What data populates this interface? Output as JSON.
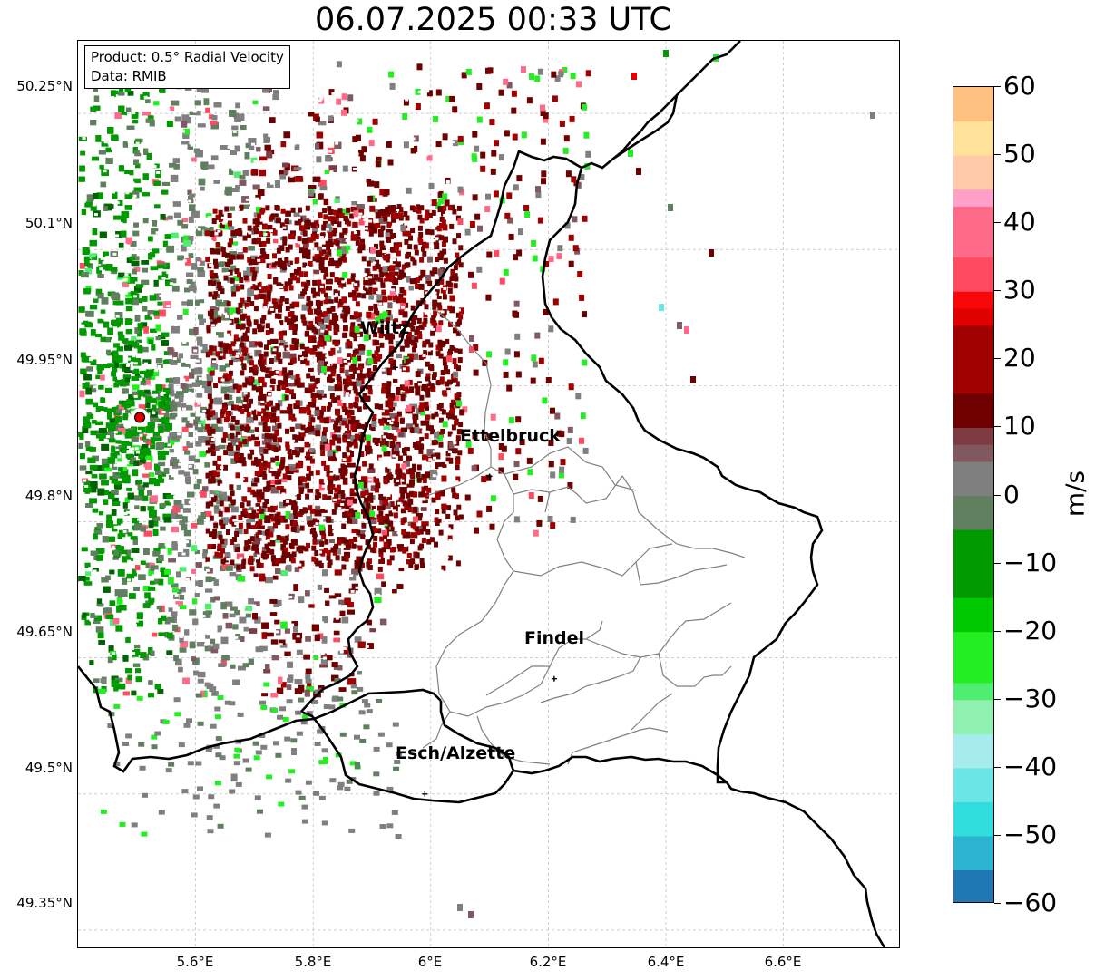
{
  "title": "06.07.2025 00:33 UTC",
  "info": {
    "product": "Product: 0.5° Radial Velocity",
    "data": "Data: RMIB"
  },
  "lat_labels": [
    "50.25°N",
    "50.1°N",
    "49.95°N",
    "49.8°N",
    "49.65°N",
    "49.5°N",
    "49.35°N"
  ],
  "lon_labels": [
    "5.6°E",
    "5.8°E",
    "6°E",
    "6.2°E",
    "6.4°E",
    "6.6°E"
  ],
  "cities": [
    {
      "name": "Wiltz",
      "lon": 5.94,
      "lat": 49.97
    },
    {
      "name": "Ettelbruck",
      "lon": 6.1,
      "lat": 49.85
    },
    {
      "name": "Findel",
      "lon": 6.21,
      "lat": 49.627
    },
    {
      "name": "Esch/Alzette",
      "lon": 5.99,
      "lat": 49.5
    }
  ],
  "radar_site": {
    "lon": 5.505,
    "lat": 49.915
  },
  "colorbar": {
    "label": "m/s",
    "ticks": [
      "60",
      "50",
      "40",
      "30",
      "20",
      "10",
      "0",
      "−10",
      "−20",
      "−30",
      "−40",
      "−50",
      "−60"
    ],
    "min": -60,
    "max": 60,
    "stops": [
      {
        "v": -60,
        "color": "#1f78b4"
      },
      {
        "v": -55,
        "color": "#2bb5d0"
      },
      {
        "v": -50,
        "color": "#30dede"
      },
      {
        "v": -45,
        "color": "#6ae6e6"
      },
      {
        "v": -40,
        "color": "#a6ecec"
      },
      {
        "v": -36,
        "color": "#b8f0f0"
      },
      {
        "v": -35,
        "color": "#90f0b0"
      },
      {
        "v": -31,
        "color": "#50ee70"
      },
      {
        "v": -28,
        "color": "#22ee22"
      },
      {
        "v": -20,
        "color": "#00c800"
      },
      {
        "v": -14,
        "color": "#009a00"
      },
      {
        "v": -6,
        "color": "#006400"
      },
      {
        "v": -5,
        "color": "#5f7f5f"
      },
      {
        "v": 0,
        "color": "#7f7f7f"
      },
      {
        "v": 5,
        "color": "#7f5860"
      },
      {
        "v": 8,
        "color": "#7f3b44"
      },
      {
        "v": 9,
        "color": "#6e0000"
      },
      {
        "v": 16,
        "color": "#a00000"
      },
      {
        "v": 24,
        "color": "#e00000"
      },
      {
        "v": 28,
        "color": "#f80808"
      },
      {
        "v": 29,
        "color": "#ff4a60"
      },
      {
        "v": 35,
        "color": "#ff6a88"
      },
      {
        "v": 42,
        "color": "#ffa0c8"
      },
      {
        "v": 46,
        "color": "#ffcaa8"
      },
      {
        "v": 50,
        "color": "#ffe39b"
      },
      {
        "v": 55,
        "color": "#ffc080"
      },
      {
        "v": 60,
        "color": "#ff9a50"
      }
    ]
  },
  "colors": {
    "border_country": "#000000",
    "border_canton": "#808080",
    "grid": "#b0b0b0"
  }
}
